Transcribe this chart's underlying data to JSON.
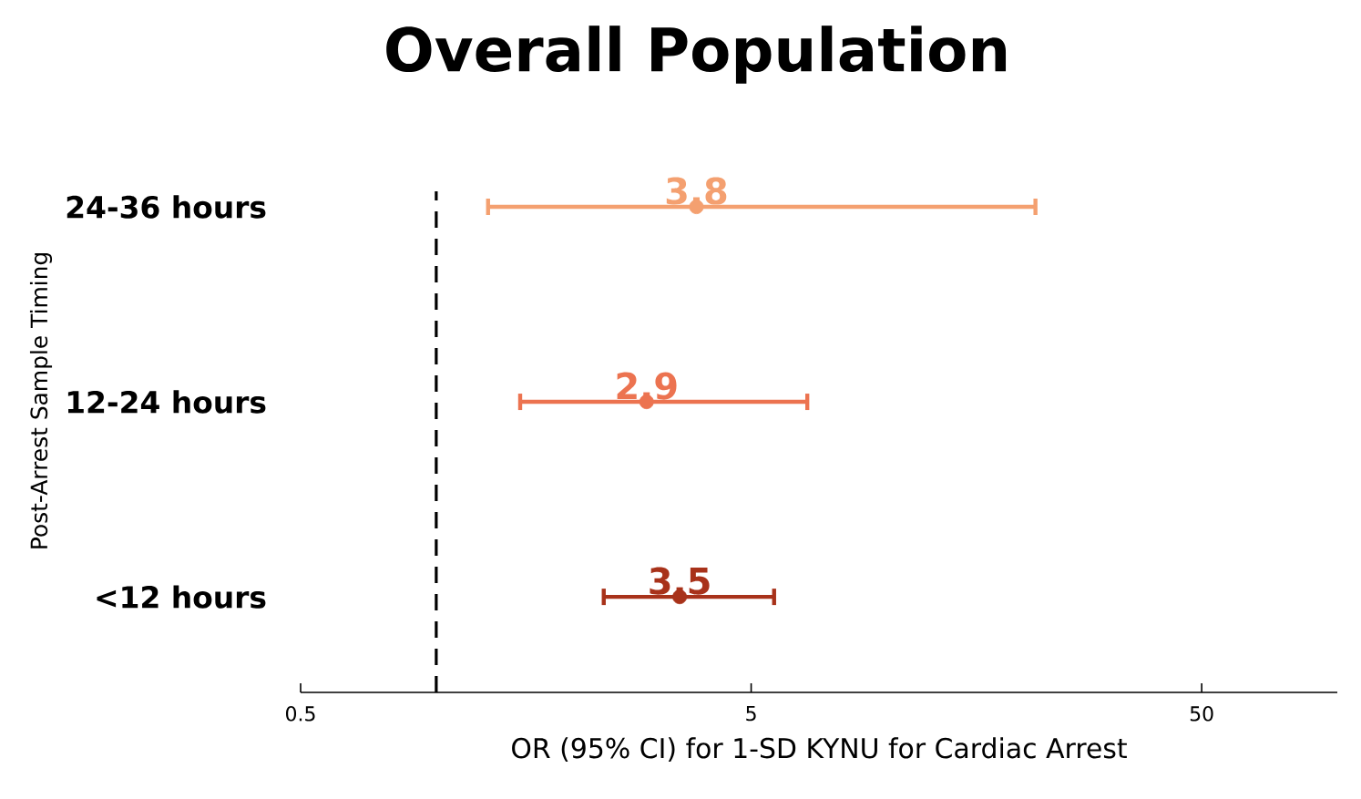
{
  "chart_data": {
    "type": "scatter",
    "title": "Overall Population",
    "xlabel": "OR (95% CI) for 1-SD KYNU for Cardiac Arrest",
    "ylabel": "Post-Arrest Sample Timing",
    "orientation": "horizontal",
    "categories": [
      "24-36 hours",
      "12-24 hours",
      "<12 hours"
    ],
    "values": [
      3.78,
      2.93,
      3.47
    ],
    "errors": [
      [
        1.29,
        21.6
      ],
      [
        1.52,
        6.73
      ],
      [
        2.33,
        5.68
      ]
    ],
    "colors": [
      "#f4a070",
      "#ec7350",
      "#a8321a"
    ],
    "value_labels": [
      "3.8",
      "2.9",
      "3.5"
    ],
    "marker": "circle",
    "log": "x",
    "xlim": [
      0.5,
      100
    ],
    "xticks": [
      0.5,
      5,
      50
    ],
    "ref_lines": [
      {
        "axis": "x",
        "value": 1,
        "line_style": "dashed",
        "color": "#000000"
      }
    ]
  }
}
